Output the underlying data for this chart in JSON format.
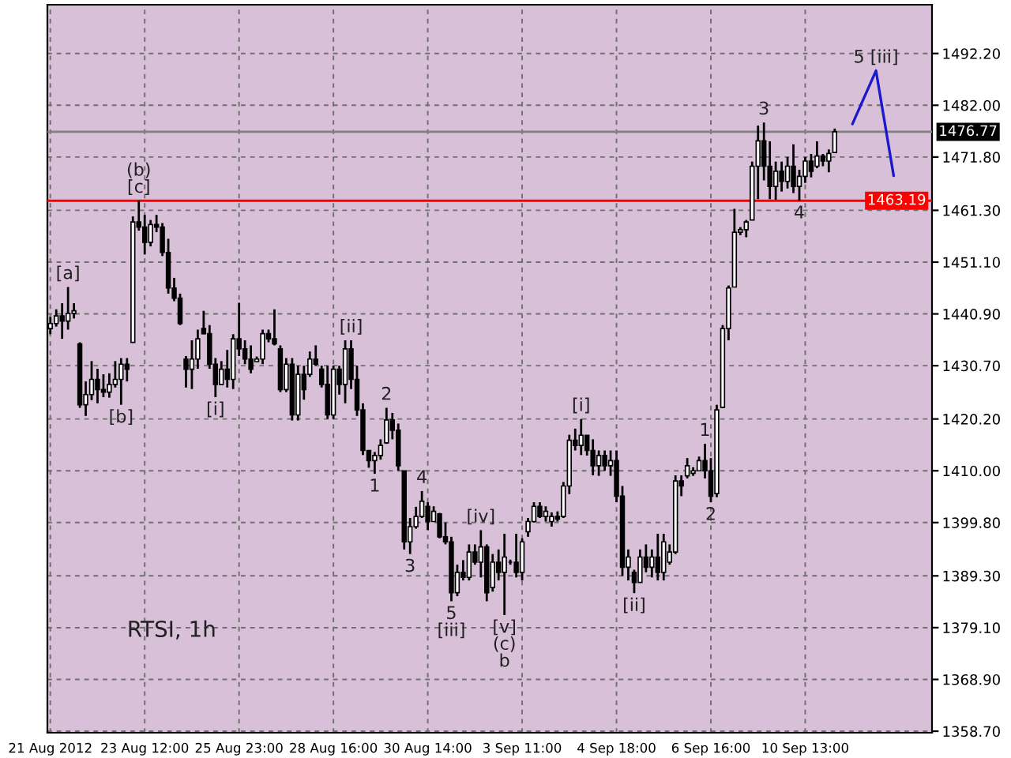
{
  "chart_data": {
    "type": "candlestick",
    "color": "#000000",
    "categories": [
      "21 Aug 2012",
      null,
      null,
      null,
      null,
      null,
      null,
      null,
      null,
      null,
      null,
      null,
      null,
      null,
      null,
      null,
      "23 Aug 12:00",
      null,
      null,
      null,
      null,
      null,
      null,
      null,
      null,
      null,
      null,
      null,
      null,
      null,
      null,
      null,
      "25 Aug 23:00",
      null,
      null,
      null,
      null,
      null,
      null,
      null,
      null,
      null,
      null,
      null,
      null,
      null,
      null,
      null,
      "28 Aug 16:00",
      null,
      null,
      null,
      null,
      null,
      null,
      null,
      null,
      null,
      null,
      null,
      null,
      null,
      null,
      null,
      "30 Aug 14:00",
      null,
      null,
      null,
      null,
      null,
      null,
      null,
      null,
      null,
      null,
      null,
      null,
      null,
      null,
      null,
      "3 Sep 11:00",
      null,
      null,
      null,
      null,
      null,
      null,
      null,
      null,
      null,
      null,
      null,
      null,
      null,
      null,
      null,
      "4 Sep 18:00",
      null,
      null,
      null,
      null,
      null,
      null,
      null,
      null,
      null,
      null,
      null,
      null,
      null,
      null,
      null,
      "6 Sep 16:00",
      null,
      null,
      null,
      null,
      null,
      null,
      null,
      null,
      null,
      null,
      null,
      null,
      null,
      null,
      null,
      "10 Sep 13:00",
      null,
      null,
      null,
      null,
      null,
      null,
      null,
      null,
      null,
      null,
      null,
      null,
      null,
      null,
      null,
      null,
      null,
      null,
      null,
      null,
      null
    ],
    "ohlc": [
      [
        1438,
        1440.3,
        1436.9,
        1439
      ],
      [
        1439,
        1441.8,
        1438.4,
        1440.5
      ],
      [
        1440.5,
        1443,
        1436,
        1439.5
      ],
      [
        1439.5,
        1446.2,
        1437.8,
        1441
      ],
      [
        1441,
        1443,
        1440,
        1441.5
      ],
      [
        1435,
        1435.3,
        1422.4,
        1423
      ],
      [
        1423,
        1427.6,
        1420.8,
        1425
      ],
      [
        1425,
        1431.6,
        1423.9,
        1428
      ],
      [
        1428,
        1430.1,
        1423.3,
        1426
      ],
      [
        1426,
        1429,
        1424.5,
        1425.5
      ],
      [
        1425.5,
        1429.2,
        1424.4,
        1427
      ],
      [
        1427,
        1431.6,
        1426.4,
        1428
      ],
      [
        1428,
        1432.2,
        1423,
        1431
      ],
      [
        1431,
        1432.2,
        1427.6,
        1430
      ],
      [
        1435.3,
        1460.1,
        1435.3,
        1459
      ],
      [
        1459,
        1463.2,
        1457.3,
        1458
      ],
      [
        1458,
        1460.4,
        1452.6,
        1455
      ],
      [
        1455,
        1459.4,
        1454.2,
        1458.5
      ],
      [
        1458.5,
        1460.4,
        1457,
        1458
      ],
      [
        1458,
        1458.8,
        1452.3,
        1453
      ],
      [
        1453,
        1455.7,
        1444.9,
        1446
      ],
      [
        1446,
        1448,
        1443.4,
        1444
      ],
      [
        1444,
        1444.9,
        1438.7,
        1439
      ],
      [
        1432,
        1432.6,
        1426.4,
        1430
      ],
      [
        1430,
        1435.7,
        1426.1,
        1432
      ],
      [
        1432,
        1437.8,
        1430.1,
        1436
      ],
      [
        1438,
        1441.5,
        1436.9,
        1437
      ],
      [
        1437,
        1438.7,
        1430.1,
        1431
      ],
      [
        1431,
        1432.2,
        1424.5,
        1427
      ],
      [
        1427,
        1431.6,
        1427,
        1430
      ],
      [
        1430,
        1433.8,
        1426.4,
        1428
      ],
      [
        1428,
        1436.9,
        1426.1,
        1436
      ],
      [
        1436,
        1443.1,
        1432.6,
        1434
      ],
      [
        1434,
        1435.7,
        1431,
        1432
      ],
      [
        1432,
        1434.7,
        1429.2,
        1430
      ],
      [
        1431.5,
        1432.5,
        1431.5,
        1432
      ],
      [
        1432,
        1437.8,
        1431,
        1437
      ],
      [
        1437,
        1437.8,
        1435.3,
        1436
      ],
      [
        1436,
        1441.8,
        1434.7,
        1435
      ],
      [
        1434,
        1434.7,
        1425.5,
        1426
      ],
      [
        1426,
        1432.2,
        1425.5,
        1431
      ],
      [
        1431,
        1432.2,
        1419.9,
        1421
      ],
      [
        1421,
        1430.7,
        1419.9,
        1429
      ],
      [
        1429,
        1430.7,
        1424,
        1426
      ],
      [
        1429,
        1433.5,
        1428.5,
        1432
      ],
      [
        1432,
        1434.7,
        1430.7,
        1431
      ],
      [
        1430,
        1430.7,
        1426.4,
        1427
      ],
      [
        1427,
        1430.7,
        1420.2,
        1421
      ],
      [
        1421,
        1430.7,
        1420.2,
        1430
      ],
      [
        1430,
        1430.7,
        1425,
        1427
      ],
      [
        1427,
        1435.7,
        1423.3,
        1434
      ],
      [
        1434,
        1435.7,
        1426.1,
        1428
      ],
      [
        1428,
        1430.7,
        1420.8,
        1422
      ],
      [
        1422,
        1423.3,
        1413.1,
        1414
      ],
      [
        1414,
        1414,
        1410.6,
        1412
      ],
      [
        1412,
        1413.7,
        1409.4,
        1413
      ],
      [
        1413,
        1416.2,
        1412.2,
        1415
      ],
      [
        1415.5,
        1422.4,
        1415.3,
        1420
      ],
      [
        1420,
        1421.4,
        1416.2,
        1418
      ],
      [
        1418,
        1419.3,
        1410,
        1411
      ],
      [
        1410,
        1410,
        1394.5,
        1396
      ],
      [
        1396,
        1400.7,
        1393.6,
        1399
      ],
      [
        1399,
        1402.9,
        1398.6,
        1401
      ],
      [
        1401,
        1406,
        1400.7,
        1404
      ],
      [
        1403,
        1403.8,
        1398.3,
        1400
      ],
      [
        1400,
        1403,
        1400,
        1402
      ],
      [
        1401.5,
        1401.7,
        1396.7,
        1397
      ],
      [
        1397,
        1399.8,
        1395.5,
        1396
      ],
      [
        1396,
        1397,
        1384.3,
        1386
      ],
      [
        1386,
        1391.5,
        1385.3,
        1390
      ],
      [
        1390,
        1392.4,
        1388.4,
        1389
      ],
      [
        1389,
        1395.5,
        1388.4,
        1394
      ],
      [
        1394,
        1395.5,
        1391.5,
        1392
      ],
      [
        1392,
        1398.3,
        1389,
        1395
      ],
      [
        1395,
        1395.5,
        1384.3,
        1386
      ],
      [
        1387,
        1393.6,
        1386.2,
        1392
      ],
      [
        1392,
        1394.5,
        1388.4,
        1390
      ],
      [
        1390,
        1397.6,
        1381.6,
        1393
      ],
      [
        1392,
        1392.5,
        1391.5,
        1392
      ],
      [
        1392,
        1397.6,
        1389,
        1390
      ],
      [
        1390,
        1396.7,
        1388.4,
        1396
      ],
      [
        1398,
        1400.7,
        1397,
        1400
      ],
      [
        1400,
        1403.8,
        1399.8,
        1403
      ],
      [
        1403,
        1403.8,
        1400.7,
        1401
      ],
      [
        1401,
        1403,
        1400,
        1402
      ],
      [
        1400,
        1401.8,
        1399,
        1401
      ],
      [
        1401,
        1402,
        1400,
        1400.5
      ],
      [
        1401,
        1407.8,
        1400.7,
        1407
      ],
      [
        1407,
        1417.1,
        1405.4,
        1416
      ],
      [
        1416,
        1418.3,
        1414,
        1415
      ],
      [
        1415,
        1420.2,
        1413.1,
        1417
      ],
      [
        1417,
        1417,
        1413,
        1414
      ],
      [
        1414,
        1416.2,
        1409.1,
        1411
      ],
      [
        1411,
        1414,
        1409,
        1413
      ],
      [
        1413,
        1414,
        1410,
        1411
      ],
      [
        1411,
        1414,
        1409,
        1412
      ],
      [
        1412,
        1414,
        1403.8,
        1405
      ],
      [
        1405,
        1407,
        1389.3,
        1391
      ],
      [
        1391,
        1394.5,
        1388.4,
        1393
      ],
      [
        1390,
        1390.5,
        1385.9,
        1388
      ],
      [
        1388,
        1394.5,
        1388,
        1393
      ],
      [
        1393,
        1395.5,
        1390,
        1391
      ],
      [
        1391,
        1394.5,
        1389,
        1393
      ],
      [
        1393,
        1397.6,
        1388.4,
        1390
      ],
      [
        1390,
        1397.6,
        1388.4,
        1396
      ],
      [
        1392,
        1395.5,
        1391.5,
        1394
      ],
      [
        1394,
        1409.1,
        1393.6,
        1408
      ],
      [
        1408,
        1409.1,
        1405,
        1407
      ],
      [
        1409,
        1412.5,
        1408.5,
        1411
      ],
      [
        1409.5,
        1410.7,
        1409,
        1410
      ],
      [
        1410,
        1412.8,
        1410,
        1412
      ],
      [
        1412,
        1415.3,
        1408.5,
        1410
      ],
      [
        1410,
        1412.5,
        1403.8,
        1405
      ],
      [
        1405.5,
        1423,
        1404.8,
        1422
      ],
      [
        1422.5,
        1438.7,
        1422.4,
        1438
      ],
      [
        1438,
        1446.5,
        1435.7,
        1446
      ],
      [
        1446.2,
        1461.6,
        1446.2,
        1457
      ],
      [
        1457,
        1458,
        1456.4,
        1457.5
      ],
      [
        1457.5,
        1459.4,
        1456,
        1459
      ],
      [
        1459.4,
        1470.9,
        1459.4,
        1470
      ],
      [
        1470,
        1478,
        1463.5,
        1475
      ],
      [
        1475,
        1478.6,
        1467.2,
        1470
      ],
      [
        1470,
        1474.9,
        1463.5,
        1466
      ],
      [
        1466,
        1470.9,
        1463.4,
        1469
      ],
      [
        1469,
        1470.9,
        1465,
        1467
      ],
      [
        1467,
        1471.8,
        1465.6,
        1470
      ],
      [
        1470,
        1474.3,
        1464.7,
        1466
      ],
      [
        1466,
        1469.3,
        1463.2,
        1468
      ],
      [
        1468,
        1471.8,
        1466.7,
        1471
      ],
      [
        1471,
        1472.4,
        1467.8,
        1469
      ],
      [
        1470,
        1474.9,
        1469.6,
        1472
      ],
      [
        1472,
        1472.4,
        1470,
        1471
      ],
      [
        1471,
        1473.3,
        1468.8,
        1472.5
      ],
      [
        1472.7,
        1477.4,
        1472.7,
        1476.77
      ],
      null,
      null,
      null,
      null,
      null,
      null,
      null,
      null,
      null,
      null,
      null,
      null,
      null,
      null,
      null,
      null
    ],
    "series": [
      {
        "type": "line",
        "color": "#1a1acc",
        "values": [
          null,
          null,
          null,
          null,
          null,
          null,
          null,
          null,
          null,
          null,
          null,
          null,
          null,
          null,
          null,
          null,
          null,
          null,
          null,
          null,
          null,
          null,
          null,
          null,
          null,
          null,
          null,
          null,
          null,
          null,
          null,
          null,
          null,
          null,
          null,
          null,
          null,
          null,
          null,
          null,
          null,
          null,
          null,
          null,
          null,
          null,
          null,
          null,
          null,
          null,
          null,
          null,
          null,
          null,
          null,
          null,
          null,
          null,
          null,
          null,
          null,
          null,
          null,
          null,
          null,
          null,
          null,
          null,
          null,
          null,
          null,
          null,
          null,
          null,
          null,
          null,
          null,
          null,
          null,
          null,
          null,
          null,
          null,
          null,
          null,
          null,
          null,
          null,
          null,
          null,
          null,
          null,
          null,
          null,
          null,
          null,
          null,
          null,
          null,
          null,
          null,
          null,
          null,
          null,
          null,
          null,
          null,
          null,
          null,
          null,
          null,
          null,
          null,
          null,
          null,
          null,
          null,
          null,
          null,
          null,
          null,
          null,
          null,
          null,
          null,
          null,
          null,
          null,
          null,
          null,
          null,
          null,
          null,
          null,
          null,
          null,
          1478.3,
          null,
          null,
          null,
          1488.8,
          null,
          null,
          1468.1,
          null,
          null,
          null,
          null,
          null,
          null
        ]
      }
    ],
    "ylim": [
      1358.4,
      1501.8
    ],
    "yticks": [
      {
        "value": 1358.7,
        "label": "1358.70"
      },
      {
        "value": 1368.9,
        "label": "1368.90"
      },
      {
        "value": 1379.1,
        "label": "1379.10"
      },
      {
        "value": 1389.3,
        "label": "1389.30"
      },
      {
        "value": 1399.8,
        "label": "1399.80"
      },
      {
        "value": 1410,
        "label": "1410.00"
      },
      {
        "value": 1420.2,
        "label": "1420.20"
      },
      {
        "value": 1430.7,
        "label": "1430.70"
      },
      {
        "value": 1440.9,
        "label": "1440.90"
      },
      {
        "value": 1451.1,
        "label": "1451.10"
      },
      {
        "value": 1461.3,
        "label": "1461.30"
      },
      {
        "value": 1471.8,
        "label": "1471.80"
      },
      {
        "value": 1482,
        "label": "1482.00"
      },
      {
        "value": 1492.2,
        "label": "1492.20"
      }
    ],
    "grid": true,
    "ref_lines": [
      {
        "axis": "y",
        "value": 1476.77,
        "label": "1476.77",
        "color": "#808080"
      },
      {
        "axis": "y",
        "value": 1463.19,
        "label": "1463.19",
        "color": "#ff0000"
      }
    ],
    "annotations": [
      "RTSI, 1h",
      {
        "text": "[a]",
        "y": 1446.2
      },
      {
        "text": "[b]",
        "y": 1423
      },
      {
        "text": "(b)\n[c]",
        "y": 1463.2
      },
      {
        "text": "[i]",
        "y": 1424.5
      },
      {
        "text": "[ii]",
        "y": 1435.7
      },
      {
        "text": "1",
        "y": 1409.4
      },
      {
        "text": "2",
        "y": 1422.4
      },
      {
        "text": "3",
        "y": 1393.6
      },
      {
        "text": "4",
        "y": 1406
      },
      {
        "text": "5\n[iii]",
        "y": 1384.3
      },
      {
        "text": "[iv]",
        "y": 1398.3
      },
      {
        "text": "[v]\n(c)\nb",
        "y": 1381.6
      },
      {
        "text": "[i]",
        "y": 1420.2
      },
      {
        "text": "[ii]",
        "y": 1385.9
      },
      {
        "text": "1",
        "y": 1415.3
      },
      {
        "text": "2",
        "y": 1403.8
      },
      {
        "text": "3",
        "y": 1478.6
      },
      {
        "text": "4",
        "y": 1463.2
      },
      {
        "text": "5 [iii]",
        "y": 1488.8
      }
    ]
  }
}
